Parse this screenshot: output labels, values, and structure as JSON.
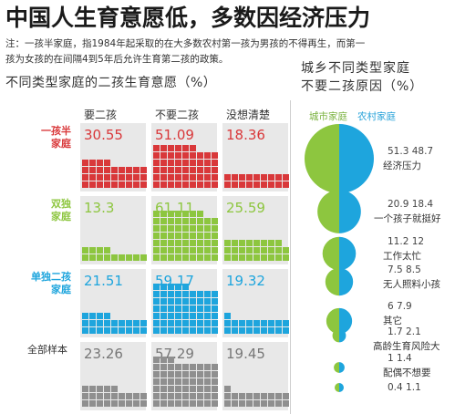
{
  "title": "中国人生育意愿低，多数因经济压力",
  "note": {
    "line1": "注：一孩半家庭，指1984年起采取的在大多数农村第一孩为男孩的不得再生，而第一",
    "line2": "孩为女孩的在间隔4到5年后允许生育第二孩的政策。"
  },
  "left_chart_title": "不同类型家庭的二孩生育意愿（%）",
  "right_chart_title_1": "城乡不同类型家庭",
  "right_chart_title_2": "不要二孩原因（%）",
  "colors": {
    "red": "#d9383a",
    "green": "#8dc63f",
    "blue": "#1ea5dd",
    "gray": "#8f8f8f",
    "city": "#7cb342",
    "rural": "#29a3d9"
  },
  "chart_data": [
    {
      "type": "table",
      "title": "不同类型家庭的二孩生育意愿（%）",
      "columns": [
        "要二孩",
        "不要二孩",
        "没想清楚"
      ],
      "rows": [
        {
          "label": "一孩半家庭",
          "label_lines": [
            "一孩半",
            "家庭"
          ],
          "color": "#d9383a",
          "values": [
            30.55,
            51.09,
            18.36
          ],
          "display": [
            "30.55",
            "51.09",
            "18.36"
          ]
        },
        {
          "label": "双独家庭",
          "label_lines": [
            "双独",
            "家庭"
          ],
          "color": "#8dc63f",
          "values": [
            13.3,
            61.11,
            25.59
          ],
          "display": [
            "13.3",
            "61.11",
            "25.59"
          ]
        },
        {
          "label": "单独二孩家庭",
          "label_lines": [
            "单独二孩",
            "家庭"
          ],
          "color": "#1ea5dd",
          "values": [
            21.51,
            59.17,
            19.32
          ],
          "display": [
            "21.51",
            "59.17",
            "19.32"
          ]
        },
        {
          "label": "全部样本",
          "label_lines": [
            "全部样本"
          ],
          "color": "#8f8f8f",
          "values": [
            23.26,
            57.29,
            19.45
          ],
          "display": [
            "23.26",
            "57.29",
            "19.45"
          ]
        }
      ]
    },
    {
      "type": "pie",
      "title": "城乡不同类型家庭 不要二孩原因（%）",
      "series_names": [
        "城市家庭",
        "农村家庭"
      ],
      "categories": [
        "经济压力",
        "一个孩子就挺好",
        "工作太忙",
        "无人照料小孩",
        "其它",
        "高龄生育风险大",
        "配偶不想要",
        ""
      ],
      "series": [
        {
          "name": "城市家庭",
          "values": [
            51.3,
            20.9,
            11.2,
            7.5,
            6,
            1.7,
            1,
            0.4
          ],
          "display": [
            "51.3",
            "20.9",
            "11.2",
            "7.5",
            "6",
            "1.7",
            "1",
            "0.4"
          ]
        },
        {
          "name": "农村家庭",
          "values": [
            48.7,
            18.4,
            12,
            8.5,
            7.9,
            2.1,
            1.4,
            1.1
          ],
          "display": [
            "48.7",
            "18.4",
            "12",
            "8.5",
            "7.9",
            "2.1",
            "1.4",
            "1.1"
          ]
        }
      ]
    }
  ]
}
